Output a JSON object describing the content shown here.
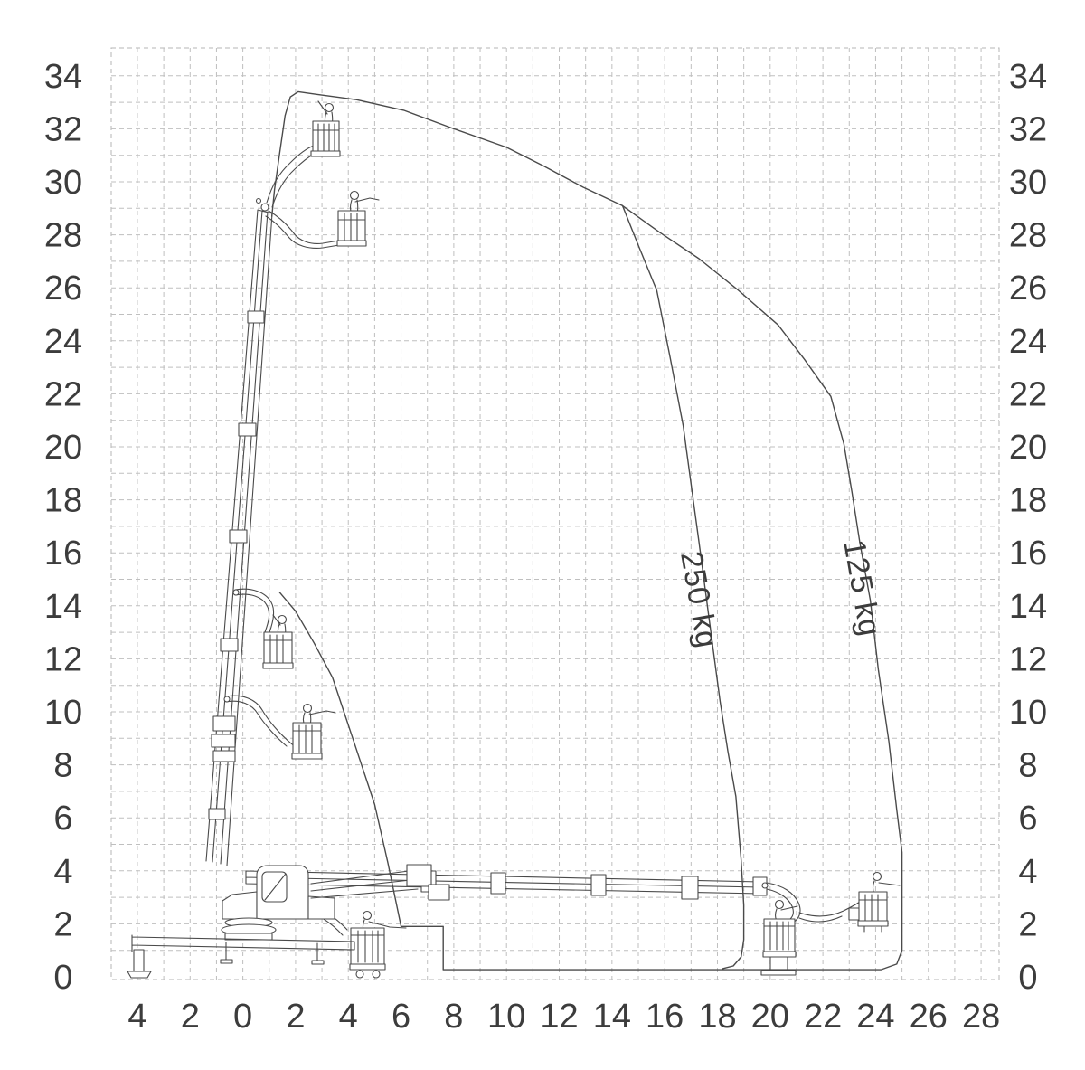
{
  "chart_data": {
    "type": "line",
    "description_labels": {
      "curve_250": "250 kg",
      "curve_125": "125 kg"
    },
    "axes": {
      "x_tick_values": [
        -4,
        -2,
        0,
        2,
        4,
        6,
        8,
        10,
        12,
        14,
        16,
        18,
        20,
        22,
        24,
        26,
        28
      ],
      "x_tick_labels": [
        "4",
        "2",
        "0",
        "2",
        "4",
        "6",
        "8",
        "10",
        "12",
        "14",
        "16",
        "18",
        "20",
        "22",
        "24",
        "26",
        "28"
      ],
      "y_tick_values": [
        34,
        32,
        30,
        28,
        26,
        24,
        22,
        20,
        18,
        16,
        14,
        12,
        10,
        8,
        6,
        4,
        2,
        0
      ],
      "y_tick_labels": [
        "34",
        "32",
        "30",
        "28",
        "26",
        "24",
        "22",
        "20",
        "18",
        "16",
        "14",
        "12",
        "10",
        "8",
        "6",
        "4",
        "2",
        "0"
      ],
      "xlim": [
        -5,
        28.7
      ],
      "ylim": [
        -0.1,
        35.2
      ],
      "grid_spacing": 1,
      "grid_style": "dashed"
    },
    "curves": [
      {
        "label": "250 kg",
        "points_m": [
          [
            14.4,
            29.1
          ],
          [
            15.0,
            27.6
          ],
          [
            15.7,
            25.9
          ],
          [
            16.2,
            23.4
          ],
          [
            16.7,
            20.8
          ],
          [
            17.0,
            18.6
          ],
          [
            17.3,
            16.4
          ],
          [
            17.7,
            13.4
          ],
          [
            18.1,
            10.4
          ],
          [
            18.4,
            8.5
          ],
          [
            18.7,
            6.8
          ],
          [
            18.9,
            4.4
          ],
          [
            19.0,
            2.7
          ],
          [
            19.0,
            1.4
          ],
          [
            18.9,
            0.75
          ],
          [
            18.6,
            0.41
          ],
          [
            18.2,
            0.31
          ]
        ]
      },
      {
        "label": "125 kg",
        "points_m": [
          [
            1.1,
            28.7
          ],
          [
            1.2,
            29.7
          ],
          [
            1.4,
            31.1
          ],
          [
            1.6,
            32.5
          ],
          [
            1.8,
            33.2
          ],
          [
            2.1,
            33.4
          ],
          [
            2.8,
            33.3
          ],
          [
            4.3,
            33.1
          ],
          [
            6.1,
            32.7
          ],
          [
            8.0,
            32.0
          ],
          [
            10.0,
            31.3
          ],
          [
            11.4,
            30.6
          ],
          [
            12.9,
            29.8
          ],
          [
            14.4,
            29.1
          ],
          [
            15.8,
            28.1
          ],
          [
            17.3,
            27.1
          ],
          [
            18.8,
            25.9
          ],
          [
            20.3,
            24.6
          ],
          [
            21.3,
            23.3
          ],
          [
            22.3,
            21.9
          ],
          [
            22.8,
            20.1
          ],
          [
            23.1,
            18.3
          ],
          [
            23.4,
            16.4
          ],
          [
            23.8,
            14.2
          ],
          [
            24.1,
            11.6
          ],
          [
            24.5,
            8.9
          ],
          [
            24.8,
            6.3
          ],
          [
            25.0,
            4.7
          ],
          [
            25.0,
            2.5
          ],
          [
            25.0,
            1.0
          ],
          [
            24.8,
            0.48
          ],
          [
            24.2,
            0.27
          ],
          [
            7.6,
            0.27
          ],
          [
            7.6,
            1.9
          ],
          [
            6.0,
            1.9
          ],
          [
            5.5,
            4.3
          ],
          [
            5.0,
            6.5
          ],
          [
            4.2,
            8.9
          ],
          [
            3.4,
            11.3
          ],
          [
            2.7,
            12.6
          ],
          [
            2.0,
            13.8
          ],
          [
            1.4,
            14.5
          ]
        ]
      }
    ],
    "platform_positions_shown_m": [
      [
        3.2,
        31.0
      ],
      [
        4.2,
        27.6
      ],
      [
        1.4,
        11.7
      ],
      [
        2.4,
        8.3
      ],
      [
        4.7,
        0.3
      ],
      [
        20.3,
        0.75
      ],
      [
        23.9,
        1.9
      ]
    ]
  }
}
